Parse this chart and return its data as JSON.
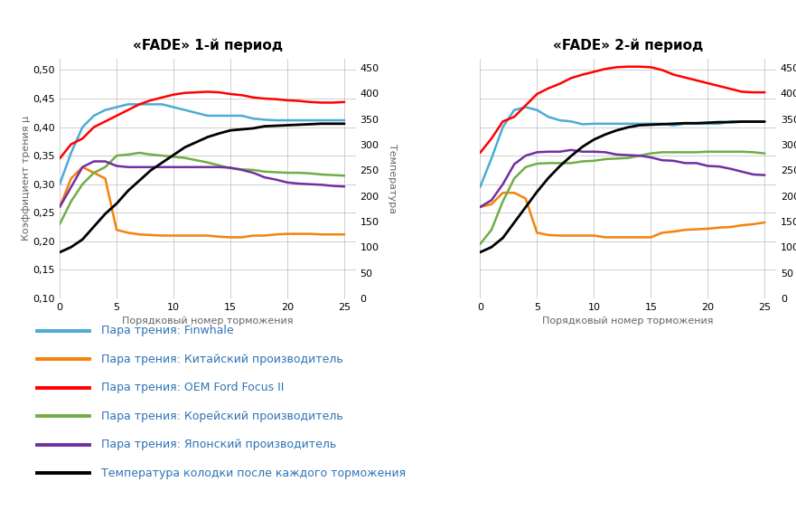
{
  "title1": "«FADE» 1-й период",
  "title2": "«FADE» 2-й период",
  "xlabel": "Порядковый номер торможения",
  "ylabel_left": "Коэффициент трения µ",
  "ylabel_right": "Температура",
  "xlim": [
    0,
    26
  ],
  "ylim_left": [
    0.1,
    0.52
  ],
  "ylim_right": [
    0,
    468
  ],
  "yticks_left": [
    0.1,
    0.15,
    0.2,
    0.25,
    0.3,
    0.35,
    0.4,
    0.45,
    0.5
  ],
  "yticks_right": [
    0,
    50,
    100,
    150,
    200,
    250,
    300,
    350,
    400,
    450
  ],
  "xticks": [
    0,
    5,
    10,
    15,
    20,
    25
  ],
  "colors": {
    "blue": "#4BACD6",
    "orange": "#F5820A",
    "red": "#FF0000",
    "green": "#70AD47",
    "purple": "#7030A0",
    "black": "#000000"
  },
  "legend_labels": [
    "Пара трения: Finwhale",
    "Пара трения: Китайский производитель",
    "Пара трения: OEM Ford Focus II",
    "Пара трения: Корейский производитель",
    "Пара трения: Японский производитель",
    "Температура колодки после каждого торможения"
  ],
  "legend_text_color": "#2E74B5",
  "p1": {
    "x": [
      0,
      1,
      2,
      3,
      4,
      5,
      6,
      7,
      8,
      9,
      10,
      11,
      12,
      13,
      14,
      15,
      16,
      17,
      18,
      19,
      20,
      21,
      22,
      23,
      24,
      25
    ],
    "blue": [
      0.3,
      0.355,
      0.4,
      0.42,
      0.43,
      0.435,
      0.44,
      0.44,
      0.44,
      0.44,
      0.435,
      0.43,
      0.425,
      0.42,
      0.42,
      0.42,
      0.42,
      0.415,
      0.413,
      0.412,
      0.412,
      0.412,
      0.412,
      0.412,
      0.412,
      0.412
    ],
    "orange": [
      0.26,
      0.31,
      0.33,
      0.32,
      0.31,
      0.22,
      0.215,
      0.212,
      0.211,
      0.21,
      0.21,
      0.21,
      0.21,
      0.21,
      0.208,
      0.207,
      0.207,
      0.21,
      0.21,
      0.212,
      0.213,
      0.213,
      0.213,
      0.212,
      0.212,
      0.212
    ],
    "red": [
      0.345,
      0.37,
      0.38,
      0.4,
      0.41,
      0.42,
      0.43,
      0.44,
      0.447,
      0.452,
      0.457,
      0.46,
      0.461,
      0.462,
      0.461,
      0.458,
      0.456,
      0.452,
      0.45,
      0.449,
      0.447,
      0.446,
      0.444,
      0.443,
      0.443,
      0.444
    ],
    "green": [
      0.23,
      0.27,
      0.3,
      0.32,
      0.33,
      0.35,
      0.352,
      0.355,
      0.352,
      0.35,
      0.348,
      0.346,
      0.342,
      0.338,
      0.333,
      0.328,
      0.326,
      0.325,
      0.322,
      0.321,
      0.32,
      0.32,
      0.319,
      0.317,
      0.316,
      0.315
    ],
    "purple": [
      0.26,
      0.295,
      0.33,
      0.34,
      0.34,
      0.332,
      0.33,
      0.33,
      0.33,
      0.33,
      0.33,
      0.33,
      0.33,
      0.33,
      0.33,
      0.329,
      0.325,
      0.32,
      0.312,
      0.308,
      0.303,
      0.301,
      0.3,
      0.299,
      0.297,
      0.296
    ],
    "temp_c": [
      90,
      100,
      115,
      140,
      165,
      185,
      210,
      230,
      250,
      265,
      280,
      295,
      305,
      315,
      322,
      328,
      330,
      332,
      336,
      337,
      338,
      339,
      340,
      341,
      341,
      341
    ]
  },
  "p2": {
    "x": [
      0,
      1,
      2,
      3,
      4,
      5,
      6,
      7,
      8,
      9,
      10,
      11,
      12,
      13,
      14,
      15,
      16,
      17,
      18,
      19,
      20,
      21,
      22,
      23,
      24,
      25
    ],
    "blue": [
      0.295,
      0.345,
      0.4,
      0.43,
      0.435,
      0.43,
      0.418,
      0.412,
      0.41,
      0.405,
      0.406,
      0.406,
      0.406,
      0.406,
      0.406,
      0.406,
      0.406,
      0.403,
      0.406,
      0.406,
      0.406,
      0.406,
      0.41,
      0.41,
      0.41,
      0.41
    ],
    "orange": [
      0.26,
      0.265,
      0.285,
      0.285,
      0.275,
      0.215,
      0.211,
      0.21,
      0.21,
      0.21,
      0.21,
      0.207,
      0.207,
      0.207,
      0.207,
      0.207,
      0.215,
      0.217,
      0.22,
      0.221,
      0.222,
      0.224,
      0.225,
      0.228,
      0.23,
      0.233
    ],
    "red": [
      0.355,
      0.38,
      0.41,
      0.418,
      0.438,
      0.458,
      0.468,
      0.476,
      0.486,
      0.492,
      0.497,
      0.502,
      0.505,
      0.506,
      0.506,
      0.505,
      0.5,
      0.492,
      0.487,
      0.482,
      0.477,
      0.472,
      0.467,
      0.462,
      0.461,
      0.461
    ],
    "green": [
      0.195,
      0.22,
      0.27,
      0.31,
      0.33,
      0.336,
      0.337,
      0.337,
      0.337,
      0.34,
      0.341,
      0.344,
      0.345,
      0.346,
      0.35,
      0.354,
      0.356,
      0.356,
      0.356,
      0.356,
      0.357,
      0.357,
      0.357,
      0.357,
      0.356,
      0.354
    ],
    "purple": [
      0.26,
      0.272,
      0.3,
      0.335,
      0.35,
      0.356,
      0.357,
      0.357,
      0.36,
      0.357,
      0.357,
      0.356,
      0.352,
      0.351,
      0.35,
      0.347,
      0.342,
      0.341,
      0.337,
      0.337,
      0.332,
      0.331,
      0.327,
      0.322,
      0.317,
      0.316
    ],
    "temp_c": [
      90,
      100,
      118,
      148,
      178,
      208,
      235,
      258,
      278,
      296,
      310,
      320,
      328,
      334,
      338,
      339,
      340,
      341,
      342,
      342,
      343,
      344,
      344,
      345,
      345,
      345
    ]
  }
}
